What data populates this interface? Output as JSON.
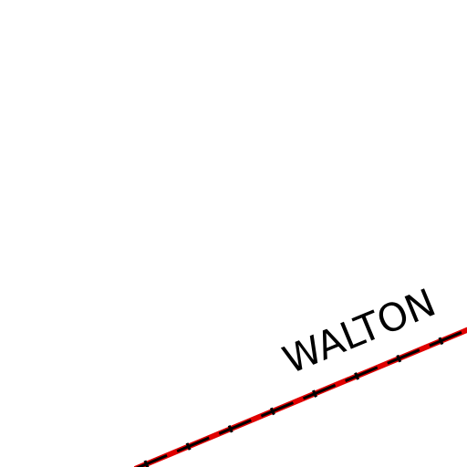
{
  "labels": {
    "place": "WALTON"
  }
}
